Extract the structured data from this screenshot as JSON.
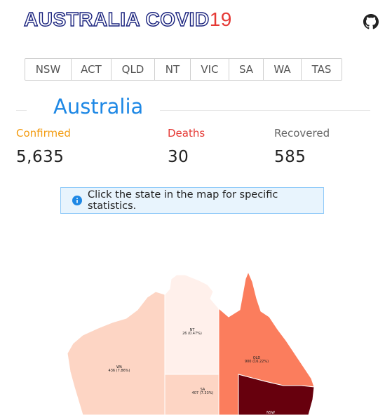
{
  "header": {
    "title_main": "AUSTRALIA COVID",
    "title_num": "19",
    "github_icon": "github-icon"
  },
  "tabs": [
    "NSW",
    "ACT",
    "QLD",
    "NT",
    "VIC",
    "SA",
    "WA",
    "TAS"
  ],
  "section": {
    "title": "Australia"
  },
  "stats": {
    "confirmed_label": "Confirmed",
    "confirmed_value": "5,635",
    "deaths_label": "Deaths",
    "deaths_value": "30",
    "recovered_label": "Recovered",
    "recovered_value": "585"
  },
  "colors": {
    "confirmed": "#f39c12",
    "deaths": "#e53935",
    "recovered": "#666666",
    "accent": "#1e88e5",
    "title_outline": "#1a237e"
  },
  "notice": {
    "icon": "info-icon",
    "text": "Click the state in the map for specific statistics."
  },
  "map": {
    "states": [
      {
        "code": "WA",
        "label": "WA",
        "stat": "436 (7.86%)",
        "color": "#fdd5c4"
      },
      {
        "code": "NT",
        "label": "NT",
        "stat": "26 (0.47%)",
        "color": "#fff0eb"
      },
      {
        "code": "SA",
        "label": "SA",
        "stat": "407 (7.33%)",
        "color": "#fdd5c4"
      },
      {
        "code": "QLD",
        "label": "QLD",
        "stat": "900 (16.22%)",
        "color": "#fb7d5d"
      },
      {
        "code": "NSW",
        "label": "NSW",
        "stat": "",
        "color": "#67000d"
      }
    ]
  }
}
